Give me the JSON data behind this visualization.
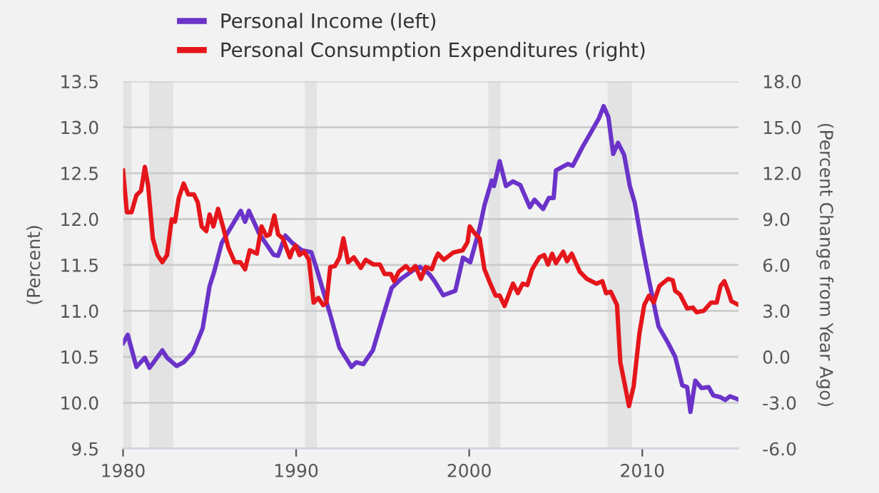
{
  "chart_data": {
    "type": "line",
    "xlim": [
      1980,
      2015.55
    ],
    "xticks": [
      1980,
      1990,
      2000,
      2010
    ],
    "ylim": [
      9.5,
      13.5
    ],
    "yticks": [
      9.5,
      {
        "value": 10,
        "label": "10.0"
      },
      10.5,
      {
        "value": 11,
        "label": "11.0"
      },
      11.5,
      {
        "value": 12,
        "label": "12.0"
      },
      12.5,
      {
        "value": 13,
        "label": "13.0"
      },
      13.5
    ],
    "y2lim": [
      -6,
      18
    ],
    "y2ticks": [
      {
        "value": -6,
        "label": "-6.0"
      },
      {
        "value": -3,
        "label": "-3.0"
      },
      {
        "value": 0,
        "label": "0.0"
      },
      {
        "value": 3,
        "label": "3.0"
      },
      {
        "value": 6,
        "label": "6.0"
      },
      {
        "value": 9,
        "label": "9.0"
      },
      {
        "value": 12,
        "label": "12.0"
      },
      {
        "value": 15,
        "label": "15.0"
      },
      {
        "value": 18,
        "label": "18.0"
      }
    ],
    "ylabel": "(Percent)",
    "y2label": "(Percent Change from Year Ago)",
    "grid": "y",
    "legend": "top",
    "bands": [
      {
        "axis": "x",
        "from": 1980.0,
        "to": 1980.5,
        "color": "#e3e3e3"
      },
      {
        "axis": "x",
        "from": 1981.5,
        "to": 1982.9,
        "color": "#e3e3e3"
      },
      {
        "axis": "x",
        "from": 1990.5,
        "to": 1991.2,
        "color": "#e3e3e3"
      },
      {
        "axis": "x",
        "from": 2001.1,
        "to": 2001.8,
        "color": "#e3e3e3"
      },
      {
        "axis": "x",
        "from": 2008.0,
        "to": 2009.4,
        "color": "#e3e3e3"
      }
    ],
    "series": [
      {
        "name": "Personal Income (left)",
        "color": "#6b33c9",
        "axis": "y",
        "x": [
          1980.0,
          1980.27,
          1980.77,
          1981.26,
          1981.53,
          1982.27,
          1982.54,
          1983.09,
          1983.5,
          1984.04,
          1984.6,
          1985.0,
          1985.27,
          1985.7,
          1986.2,
          1986.8,
          1987.05,
          1987.27,
          1987.87,
          1988.7,
          1988.96,
          1989.37,
          1989.78,
          1990.33,
          1990.87,
          1991.15,
          1991.56,
          1991.97,
          1992.5,
          1993.2,
          1993.47,
          1993.88,
          1994.43,
          1994.97,
          1995.52,
          1996.07,
          1996.9,
          1997.16,
          1997.7,
          1997.98,
          1998.5,
          1999.2,
          1999.64,
          2000.06,
          2000.6,
          2000.88,
          2001.3,
          2001.43,
          2001.76,
          2002.12,
          2002.53,
          2002.95,
          2003.5,
          2003.77,
          2004.27,
          2004.6,
          2004.88,
          2005.01,
          2005.7,
          2005.98,
          2006.53,
          2007.08,
          2007.5,
          2007.77,
          2008.04,
          2008.32,
          2008.6,
          2008.95,
          2009.28,
          2009.56,
          2009.97,
          2010.39,
          2010.94,
          2011.49,
          2011.9,
          2012.31,
          2012.59,
          2012.78,
          2013.06,
          2013.42,
          2013.83,
          2014.1,
          2014.52,
          2014.79,
          2015.07,
          2015.48
        ],
        "values": [
          10.65,
          10.74,
          10.39,
          10.49,
          10.38,
          10.57,
          10.49,
          10.4,
          10.44,
          10.55,
          10.81,
          11.27,
          11.43,
          11.74,
          11.9,
          12.09,
          11.97,
          12.09,
          11.84,
          11.61,
          11.6,
          11.82,
          11.74,
          11.66,
          11.64,
          11.48,
          11.22,
          10.96,
          10.6,
          10.39,
          10.44,
          10.42,
          10.57,
          10.91,
          11.25,
          11.35,
          11.46,
          11.48,
          11.4,
          11.33,
          11.17,
          11.22,
          11.58,
          11.53,
          11.9,
          12.15,
          12.42,
          12.36,
          12.63,
          12.36,
          12.41,
          12.37,
          12.13,
          12.21,
          12.11,
          12.23,
          12.23,
          12.53,
          12.6,
          12.58,
          12.78,
          12.96,
          13.1,
          13.23,
          13.11,
          12.71,
          12.83,
          12.7,
          12.36,
          12.18,
          11.74,
          11.33,
          10.83,
          10.65,
          10.5,
          10.19,
          10.17,
          9.9,
          10.24,
          10.16,
          10.17,
          10.08,
          10.06,
          10.03,
          10.07,
          10.04
        ]
      },
      {
        "name": "Personal Consumption Expenditures (right)",
        "color": "#e5161b",
        "axis": "y2",
        "x": [
          1980.0,
          1980.22,
          1980.49,
          1980.77,
          1981.04,
          1981.26,
          1981.45,
          1981.72,
          1981.99,
          1982.27,
          1982.54,
          1982.81,
          1983.0,
          1983.22,
          1983.5,
          1983.77,
          1984.1,
          1984.32,
          1984.54,
          1984.81,
          1985.0,
          1985.22,
          1985.49,
          1985.77,
          1986.09,
          1986.45,
          1986.78,
          1987.05,
          1987.32,
          1987.73,
          1988.0,
          1988.28,
          1988.47,
          1988.74,
          1988.96,
          1989.23,
          1989.64,
          1989.78,
          1989.97,
          1990.19,
          1990.46,
          1990.74,
          1991.01,
          1991.28,
          1991.56,
          1991.75,
          1991.97,
          1992.24,
          1992.51,
          1992.73,
          1993.0,
          1993.33,
          1993.74,
          1994.02,
          1994.48,
          1994.84,
          1995.11,
          1995.47,
          1995.66,
          1995.93,
          1996.34,
          1996.61,
          1996.89,
          1997.21,
          1997.49,
          1997.84,
          1998.03,
          1998.2,
          1998.53,
          1999.07,
          1999.62,
          1999.9,
          2000.03,
          2000.33,
          2000.6,
          2000.88,
          2001.16,
          2001.52,
          2001.76,
          2002.04,
          2002.53,
          2002.81,
          2003.09,
          2003.36,
          2003.64,
          2004.05,
          2004.33,
          2004.55,
          2004.79,
          2005.01,
          2005.43,
          2005.65,
          2005.92,
          2006.39,
          2006.8,
          2007.36,
          2007.69,
          2007.91,
          2008.18,
          2008.54,
          2008.73,
          2008.95,
          2009.23,
          2009.5,
          2009.83,
          2010.11,
          2010.39,
          2010.66,
          2010.99,
          2011.49,
          2011.76,
          2011.9,
          2012.18,
          2012.59,
          2012.92,
          2013.14,
          2013.55,
          2013.97,
          2014.3,
          2014.52,
          2014.74,
          2014.93,
          2015.15,
          2015.48
        ],
        "values": [
          12.17,
          9.45,
          9.45,
          10.55,
          10.86,
          12.41,
          11.17,
          7.74,
          6.65,
          6.18,
          6.65,
          8.99,
          8.83,
          10.39,
          11.32,
          10.61,
          10.61,
          10.08,
          8.52,
          8.21,
          9.3,
          8.52,
          9.67,
          8.52,
          7.12,
          6.18,
          6.18,
          5.72,
          6.96,
          6.74,
          8.52,
          7.9,
          7.99,
          9.24,
          7.99,
          7.74,
          6.5,
          6.96,
          7.27,
          6.65,
          6.87,
          6.34,
          3.54,
          3.85,
          3.38,
          3.54,
          5.87,
          5.93,
          6.5,
          7.74,
          6.18,
          6.5,
          5.81,
          6.34,
          6.03,
          6.03,
          5.41,
          5.41,
          4.94,
          5.56,
          5.93,
          5.62,
          5.93,
          5.09,
          5.87,
          5.72,
          6.34,
          6.74,
          6.34,
          6.81,
          6.96,
          7.49,
          8.52,
          8.05,
          7.74,
          5.72,
          4.94,
          4.0,
          4.0,
          3.32,
          4.78,
          4.16,
          4.78,
          4.69,
          5.72,
          6.5,
          6.65,
          6.03,
          6.74,
          6.12,
          6.87,
          6.25,
          6.74,
          5.56,
          5.09,
          4.78,
          4.94,
          4.16,
          4.25,
          3.38,
          -0.36,
          -1.6,
          -3.22,
          -1.92,
          1.51,
          3.38,
          4.0,
          3.54,
          4.63,
          5.09,
          5.0,
          4.31,
          4.07,
          3.16,
          3.22,
          2.91,
          3.01,
          3.54,
          3.54,
          4.63,
          4.94,
          4.38,
          3.63,
          3.44
        ]
      }
    ]
  }
}
